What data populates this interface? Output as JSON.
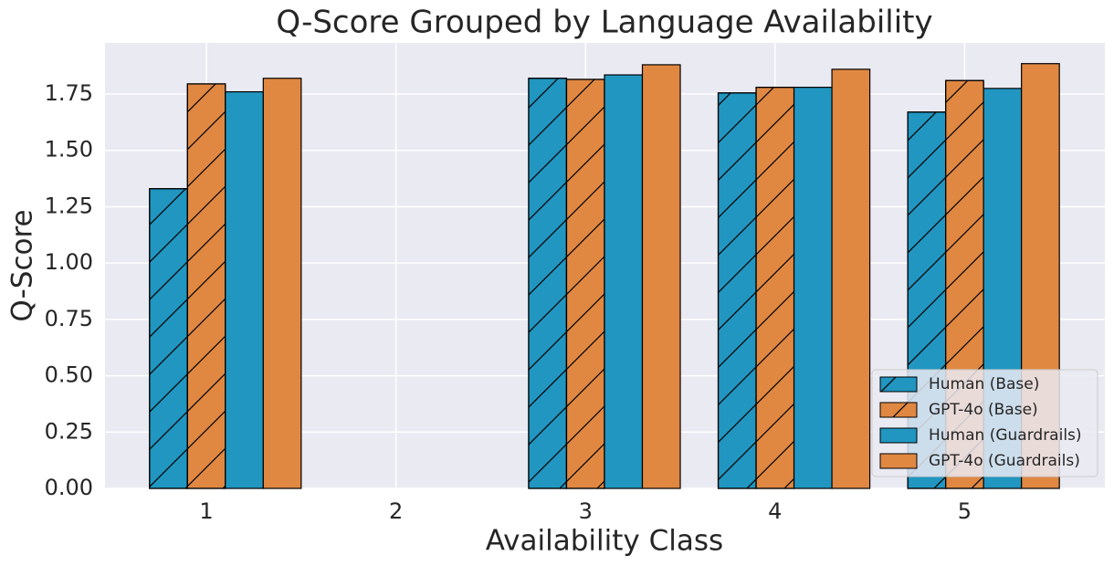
{
  "chart_data": {
    "type": "bar",
    "title": "Q-Score Grouped by Language Availability",
    "xlabel": "Availability Class",
    "ylabel": "Q-Score",
    "x": [
      1,
      2,
      3,
      4,
      5
    ],
    "xlim": [
      0.465,
      5.74
    ],
    "xticks": [
      1,
      2,
      3,
      4,
      5
    ],
    "ylim": [
      0,
      1.977
    ],
    "yticks": [
      {
        "value": 0,
        "label": "0.00"
      },
      {
        "value": 0.25,
        "label": "0.25"
      },
      {
        "value": 0.5,
        "label": "0.50"
      },
      {
        "value": 0.75,
        "label": "0.75"
      },
      {
        "value": 1,
        "label": "1.00"
      },
      {
        "value": 1.25,
        "label": "1.25"
      },
      {
        "value": 1.5,
        "label": "1.50"
      },
      {
        "value": 1.75,
        "label": "1.75"
      }
    ],
    "grid": true,
    "legend": "lower right",
    "series": [
      {
        "name": "Human (Base)",
        "color": "#2196c0",
        "hatch": "/",
        "values": [
          1.33,
          null,
          1.82,
          1.755,
          1.67
        ]
      },
      {
        "name": "GPT-4o (Base)",
        "color": "#e08842",
        "hatch": "/",
        "values": [
          1.795,
          null,
          1.815,
          1.78,
          1.81
        ]
      },
      {
        "name": "Human (Guardrails)",
        "color": "#2196c0",
        "values": [
          1.76,
          null,
          1.835,
          1.78,
          1.775
        ]
      },
      {
        "name": "GPT-4o (Guardrails)",
        "color": "#e08842",
        "values": [
          1.82,
          null,
          1.88,
          1.86,
          1.885
        ]
      }
    ]
  }
}
